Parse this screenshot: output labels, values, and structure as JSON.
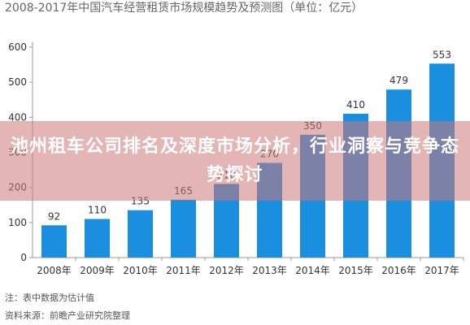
{
  "banner": {
    "text": "池州租车公司排名及深度市场分析，行业洞察与竞争态势探讨"
  },
  "footnotes": {
    "note": "注：表中数据为估计值",
    "source": "资料来源：前瞻产业研究院整理"
  },
  "colors": {
    "bar": "#1a8fe0",
    "axis": "#999999",
    "banner": "#cd7878"
  },
  "chart_data": {
    "type": "bar",
    "title": "2008-2017年中国汽车经营租赁市场规模趋势及预测图（单位：亿元）",
    "categories": [
      "2008年",
      "2009年",
      "2010年",
      "2011年",
      "2012年",
      "2013年",
      "2014年",
      "2015年",
      "2016年",
      "2017年"
    ],
    "values": [
      92,
      110,
      135,
      165,
      210,
      270,
      350,
      410,
      479,
      553
    ],
    "ylim": [
      0,
      600
    ],
    "yticks": [
      0,
      100,
      200,
      300,
      400,
      500,
      600
    ],
    "grid": false,
    "xlabel": "",
    "ylabel": ""
  }
}
